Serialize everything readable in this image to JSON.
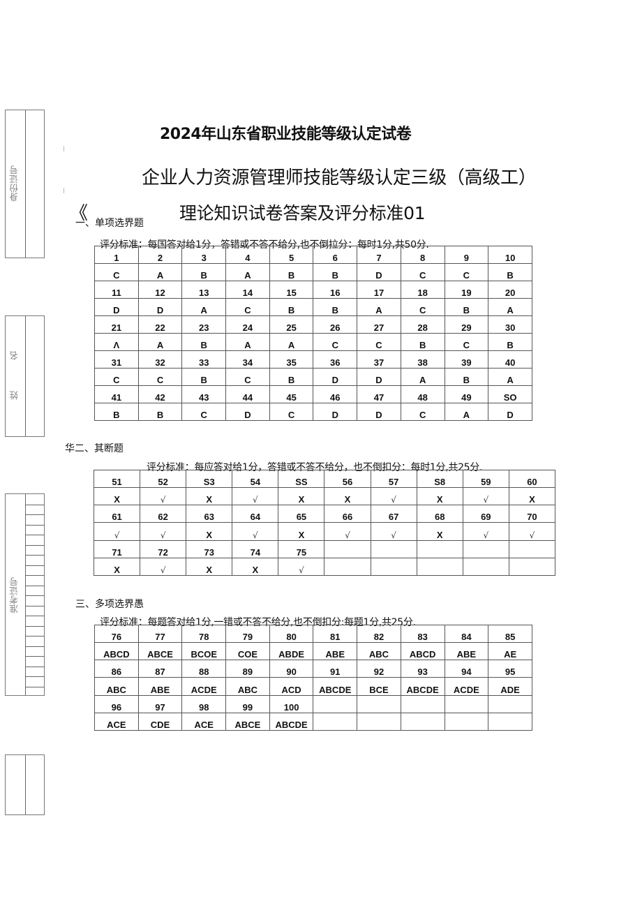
{
  "header": {
    "title_line1": "2024年山东省职业技能等级认定试卷",
    "title_line2": "企业人力资源管理师技能等级认定三级（高级工）",
    "title_line3": "理论知识试卷答案及评分标准01",
    "bracket": "《"
  },
  "side_margin": {
    "id_label": "身份证号",
    "name_label": "姓 名",
    "exam_no_label": "准考证号"
  },
  "section1": {
    "title": "一、单项选界题",
    "standard": "评分标准：每国答对给1分，答错或不答不给分,也不倒拉分：每时1分,共50分.",
    "rows": [
      [
        "1",
        "2",
        "3",
        "4",
        "5",
        "6",
        "7",
        "8",
        "9",
        "10"
      ],
      [
        "C",
        "A",
        "B",
        "A",
        "B",
        "B",
        "D",
        "C",
        "C",
        "B"
      ],
      [
        "11",
        "12",
        "13",
        "14",
        "15",
        "16",
        "17",
        "18",
        "19",
        "20"
      ],
      [
        "D",
        "D",
        "A",
        "C",
        "B",
        "B",
        "A",
        "C",
        "B",
        "A"
      ],
      [
        "21",
        "22",
        "23",
        "24",
        "25",
        "26",
        "27",
        "28",
        "29",
        "30"
      ],
      [
        "Λ",
        "A",
        "B",
        "A",
        "A",
        "C",
        "C",
        "B",
        "C",
        "B"
      ],
      [
        "31",
        "32",
        "33",
        "34",
        "35",
        "36",
        "37",
        "38",
        "39",
        "40"
      ],
      [
        "C",
        "C",
        "B",
        "C",
        "B",
        "D",
        "D",
        "A",
        "B",
        "A"
      ],
      [
        "41",
        "42",
        "43",
        "44",
        "45",
        "46",
        "47",
        "48",
        "49",
        "SO"
      ],
      [
        "B",
        "B",
        "C",
        "D",
        "C",
        "D",
        "D",
        "C",
        "A",
        "D"
      ]
    ]
  },
  "section2": {
    "title": "华二、其断题",
    "standard": "评分标准：每应答对给1分，答错或不答不给分，也不倒扣分：每时1分,共25分.",
    "rows": [
      [
        "51",
        "52",
        "S3",
        "54",
        "SS",
        "56",
        "57",
        "S8",
        "59",
        "60"
      ],
      [
        "X",
        "√",
        "X",
        "√",
        "X",
        "X",
        "√",
        "X",
        "√",
        "X"
      ],
      [
        "61",
        "62",
        "63",
        "64",
        "65",
        "66",
        "67",
        "68",
        "69",
        "70"
      ],
      [
        "√",
        "√",
        "X",
        "√",
        "X",
        "√",
        "√",
        "X",
        "√",
        "√"
      ],
      [
        "71",
        "72",
        "73",
        "74",
        "75",
        "",
        "",
        "",
        "",
        ""
      ],
      [
        "X",
        "√",
        "X",
        "X",
        "√",
        "",
        "",
        "",
        "",
        ""
      ]
    ]
  },
  "section3": {
    "title": "三、多项选界愚",
    "standard": "评分标准：每题答对给1分,一错或不答不给分,也不倒扣分:每题1分,共25分.",
    "rows": [
      [
        "76",
        "77",
        "78",
        "79",
        "80",
        "81",
        "82",
        "83",
        "84",
        "85"
      ],
      [
        "ABCD",
        "ABCE",
        "BCOE",
        "COE",
        "ABDE",
        "ABE",
        "ABC",
        "ABCD",
        "ABE",
        "AE"
      ],
      [
        "86",
        "87",
        "88",
        "89",
        "90",
        "91",
        "92",
        "93",
        "94",
        "95"
      ],
      [
        "ABC",
        "ABE",
        "ACDE",
        "ABC",
        "ACD",
        "ABCDE",
        "BCE",
        "ABCDE",
        "ACDE",
        "ADE"
      ],
      [
        "96",
        "97",
        "98",
        "99",
        "100",
        "",
        "",
        "",
        "",
        ""
      ],
      [
        "ACE",
        "CDE",
        "ACE",
        "ABCE",
        "ABCDE",
        "",
        "",
        "",
        "",
        ""
      ]
    ]
  }
}
